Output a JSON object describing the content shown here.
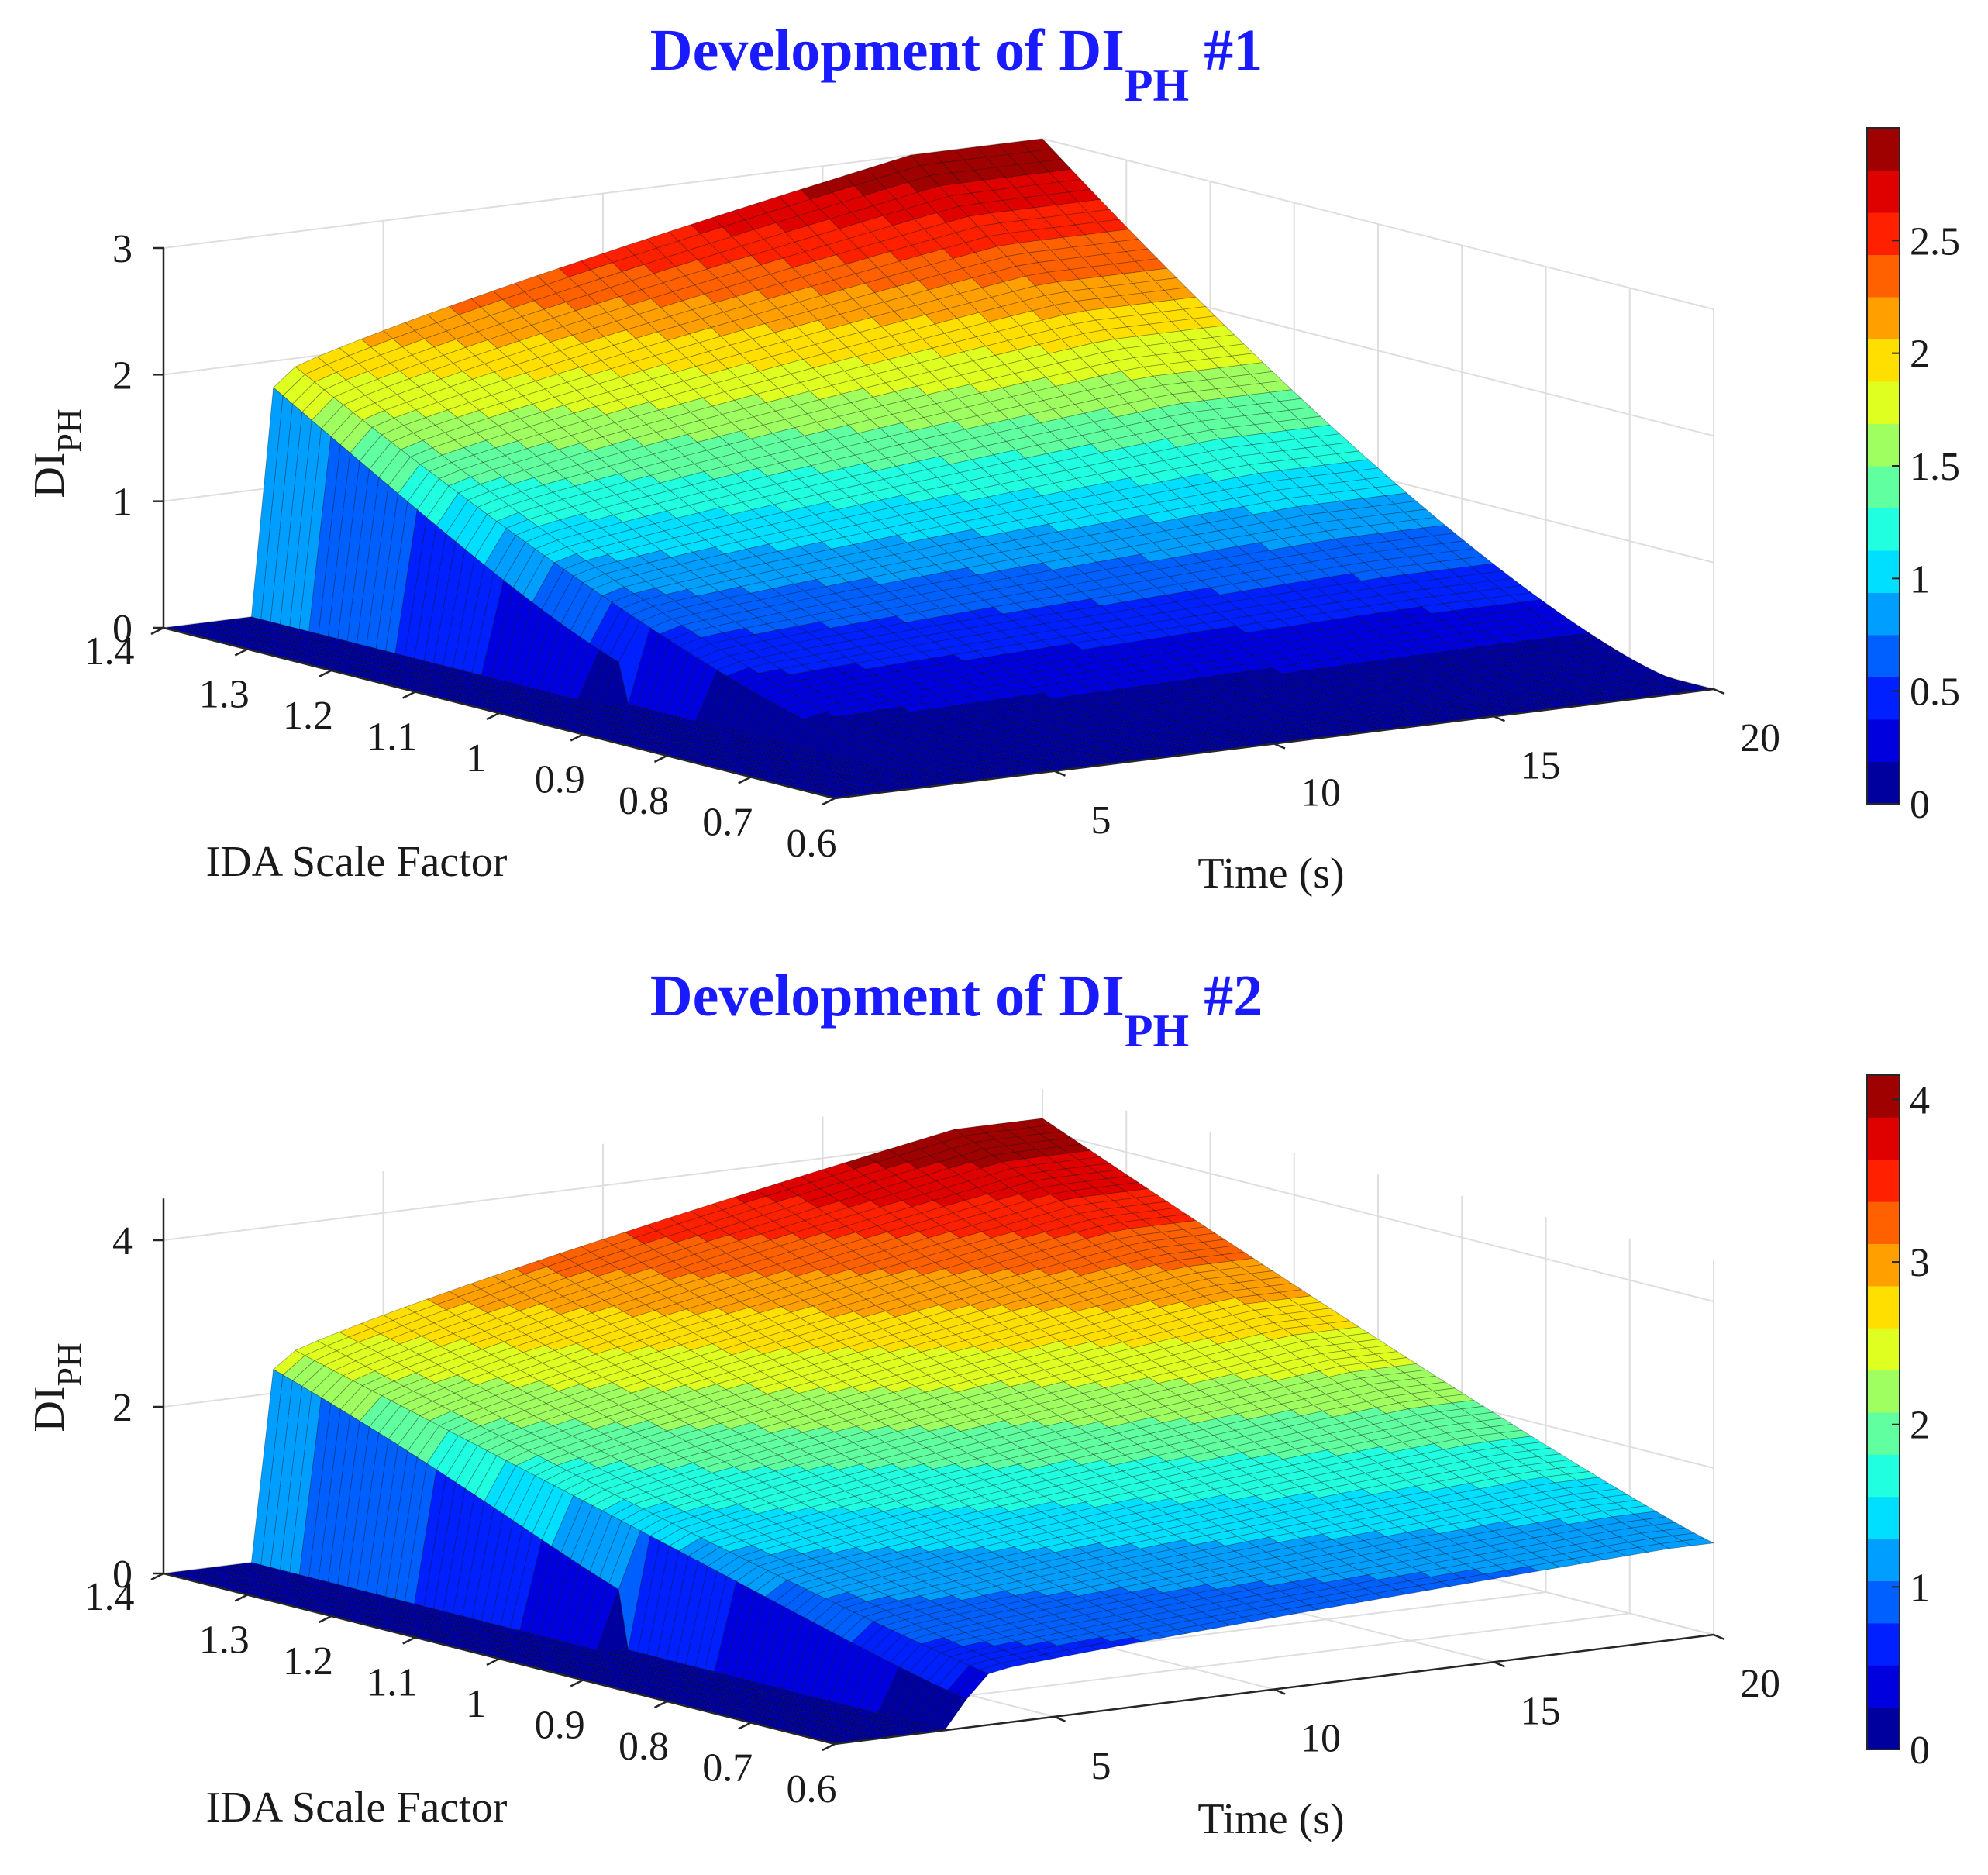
{
  "chart_data": [
    {
      "type": "surface",
      "title_main": "Development of DI",
      "title_sub": "PH",
      "title_suffix": " #1",
      "zlabel_main": "DI",
      "zlabel_sub": "PH",
      "xlabel": "Time (s)",
      "ylabel": "IDA Scale Factor",
      "x_range": [
        0,
        20
      ],
      "y_range": [
        0.6,
        1.4
      ],
      "z_range": [
        0,
        3
      ],
      "x_ticks": [
        "5",
        "10",
        "15",
        "20"
      ],
      "y_ticks": [
        "1.4",
        "1.3",
        "1.2",
        "1.1",
        "1",
        "0.9",
        "0.8",
        "0.7",
        "0.6"
      ],
      "z_ticks": [
        "0",
        "1",
        "2",
        "3"
      ],
      "colorbar_range": [
        0,
        3
      ],
      "colorbar_ticks": [
        "0",
        "0.5",
        "1",
        "1.5",
        "2",
        "2.5"
      ],
      "onset_time_s": 2.0,
      "final_di_at_scale_1_4": 3.0,
      "final_di_at_scale_0_6": 0.0
    },
    {
      "type": "surface",
      "title_main": "Development of DI",
      "title_sub": "PH",
      "title_suffix": " #2",
      "zlabel_main": "DI",
      "zlabel_sub": "PH",
      "xlabel": "Time (s)",
      "ylabel": "IDA Scale Factor",
      "x_range": [
        0,
        20
      ],
      "y_range": [
        0.6,
        1.4
      ],
      "z_range": [
        0,
        4.5
      ],
      "x_ticks": [
        "5",
        "10",
        "15",
        "20"
      ],
      "y_ticks": [
        "1.4",
        "1.3",
        "1.2",
        "1.1",
        "1",
        "0.9",
        "0.8",
        "0.7",
        "0.6"
      ],
      "z_ticks": [
        "0",
        "2",
        "4"
      ],
      "colorbar_range": [
        0,
        4.15
      ],
      "colorbar_ticks": [
        "0",
        "1",
        "2",
        "3",
        "4"
      ],
      "onset_time_s": 2.0,
      "final_di_at_scale_1_4": 4.15,
      "final_di_at_scale_0_6": 1.1
    }
  ],
  "colors": {
    "title": "#1a1aff",
    "text": "#1a1a1a",
    "axis": "#262626",
    "grid": "#dedede"
  }
}
